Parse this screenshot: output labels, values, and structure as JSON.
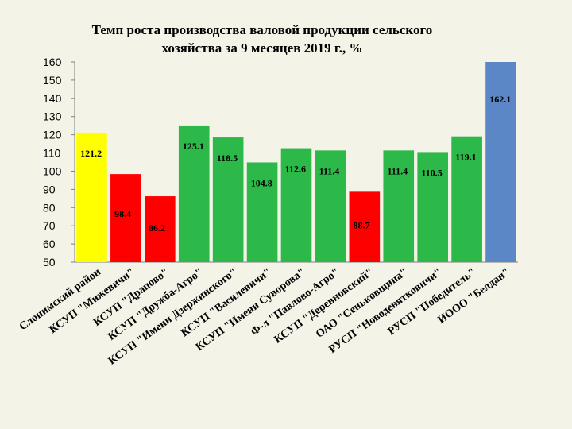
{
  "chart_data": {
    "type": "bar",
    "title": "Темп роста производства валовой продукции сельского хозяйства за 9 месяцев 2019 г., %",
    "title_lines": [
      "Темп роста производства валовой продукции сельского",
      "хозяйства за 9 месяцев 2019 г., %"
    ],
    "ylim": [
      50,
      160
    ],
    "yticks": [
      50,
      60,
      70,
      80,
      90,
      100,
      110,
      120,
      130,
      140,
      150,
      160
    ],
    "grid": false,
    "legend": "none",
    "categories": [
      "Слонимский район",
      "КСУП \"Мижевичи\"",
      "КСУП \"Драпово\"",
      "КСУП \"Дружба-Агро\"",
      "КСУП \"Имени Дзержинского\"",
      "КСУП \"Василевичи\"",
      "КСУП \"Имени Суворова\"",
      "Ф-л \"Павлово-Агро\"",
      "КСУП \"Деревновский\"",
      "ОАО \"Сеньковщина\"",
      "РУСП \"Новодевятковичи\"",
      "РУСП \"Победитель\"",
      "ИООО \"Белдан\""
    ],
    "values": [
      121.2,
      98.4,
      86.2,
      125.1,
      118.5,
      104.8,
      112.6,
      111.4,
      88.7,
      111.4,
      110.5,
      119.1,
      162.1
    ],
    "colors": [
      "#ffff00",
      "#ff0000",
      "#ff0000",
      "#2db84a",
      "#2db84a",
      "#2db84a",
      "#2db84a",
      "#2db84a",
      "#ff0000",
      "#2db84a",
      "#2db84a",
      "#2db84a",
      "#5b87c6"
    ]
  }
}
